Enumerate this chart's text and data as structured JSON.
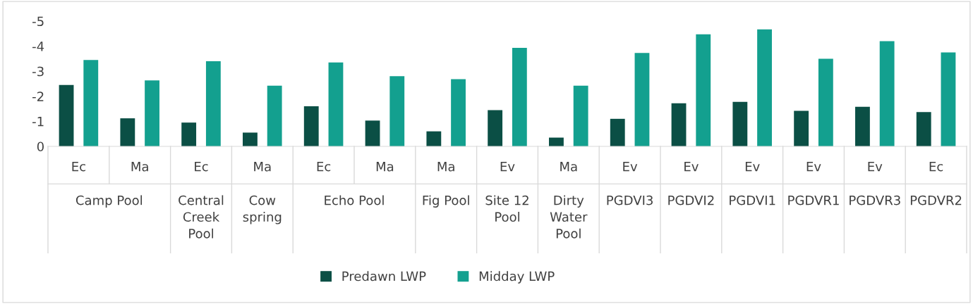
{
  "chart_data": {
    "type": "bar",
    "categories": [
      "Ec",
      "Ma",
      "Ec",
      "Ma",
      "Ec",
      "Ma",
      "Ma",
      "Ev",
      "Ma",
      "Ev",
      "Ev",
      "Ev",
      "Ev",
      "Ev",
      "Ec"
    ],
    "annotations": [
      "Camp Pool",
      "Central Creek Pool",
      "Cow spring",
      "Echo Pool",
      "Fig Pool",
      "Site 12 Pool",
      "Dirty Water Pool",
      "PGDVI3",
      "PGDVI2",
      "PGDVI1",
      "PGDVR1",
      "PGDVR3",
      "PGDVR2"
    ],
    "series": [
      {
        "name": "Predawn LWP",
        "color": "#0b4f45",
        "values": [
          -2.45,
          -1.12,
          -0.95,
          -0.55,
          -1.6,
          -1.03,
          -0.6,
          -1.45,
          -0.35,
          -1.1,
          -1.72,
          -1.78,
          -1.42,
          -1.58,
          -1.37
        ]
      },
      {
        "name": "Midday LWP",
        "color": "#13a08f",
        "values": [
          -3.45,
          -2.63,
          -3.4,
          -2.42,
          -3.35,
          -2.8,
          -2.68,
          -3.93,
          -2.42,
          -3.73,
          -4.47,
          -4.67,
          -3.5,
          -4.2,
          -3.75
        ]
      }
    ],
    "ylim": [
      0,
      -5
    ],
    "yticks": [
      0,
      -1,
      -2,
      -3,
      -4,
      -5
    ],
    "grid": false,
    "legend": "bottom"
  }
}
